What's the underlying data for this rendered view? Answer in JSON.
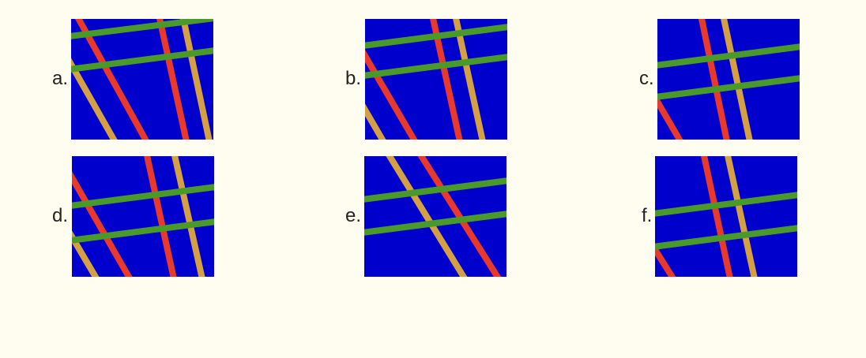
{
  "colors": {
    "background": "#fffdf0",
    "panel": "#0000cc",
    "red_strip": "#e8392a",
    "tan_strip": "#d4a043",
    "green_strip": "#4a9a2a"
  },
  "options": [
    {
      "label": "a."
    },
    {
      "label": "b."
    },
    {
      "label": "c."
    },
    {
      "label": "d."
    },
    {
      "label": "e."
    },
    {
      "label": "f."
    }
  ]
}
